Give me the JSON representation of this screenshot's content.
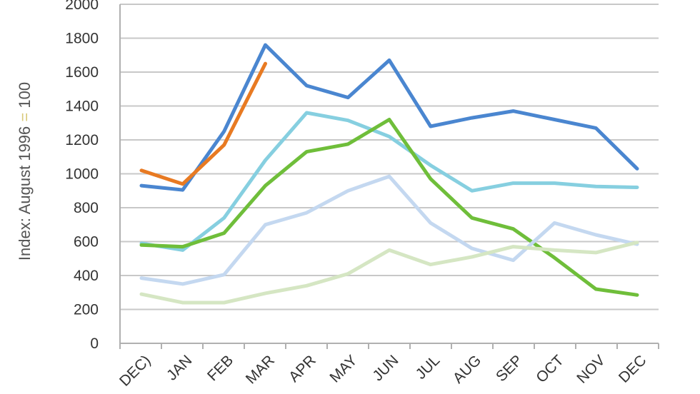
{
  "chart_data": {
    "type": "line",
    "title": "",
    "xlabel": "",
    "ylabel": {
      "before": "Index: August 1996 ",
      "accent": "=",
      "after": " 100"
    },
    "ylim": [
      0,
      2000
    ],
    "yticks": [
      0,
      200,
      400,
      600,
      800,
      1000,
      1200,
      1400,
      1600,
      1800,
      2000
    ],
    "grid": true,
    "legend": "none",
    "categories": [
      "DEC)",
      "JAN",
      "FEB",
      "MAR",
      "APR",
      "MAY",
      "JUN",
      "JUL",
      "AUG",
      "SEP",
      "OCT",
      "NOV",
      "DEC"
    ],
    "series": [
      {
        "color": "#4a86d0",
        "values": [
          930,
          905,
          1250,
          1760,
          1520,
          1450,
          1670,
          1280,
          1330,
          1370,
          1320,
          1270,
          1030
        ]
      },
      {
        "color": "#e87a22",
        "values": [
          1020,
          940,
          1170,
          1650,
          null,
          null,
          null,
          null,
          null,
          null,
          null,
          null,
          null
        ]
      },
      {
        "color": "#86cfe0",
        "values": [
          590,
          550,
          740,
          1080,
          1360,
          1315,
          1220,
          1050,
          900,
          945,
          945,
          925,
          920
        ]
      },
      {
        "color": "#6fbe3a",
        "values": [
          580,
          570,
          650,
          930,
          1130,
          1175,
          1320,
          970,
          740,
          675,
          505,
          320,
          285
        ]
      },
      {
        "color": "#c4d8f0",
        "values": [
          385,
          350,
          405,
          700,
          770,
          900,
          985,
          710,
          560,
          490,
          710,
          640,
          585
        ]
      },
      {
        "color": "#d5e6c3",
        "values": [
          290,
          240,
          240,
          295,
          340,
          410,
          550,
          465,
          510,
          570,
          550,
          535,
          595
        ]
      }
    ]
  }
}
